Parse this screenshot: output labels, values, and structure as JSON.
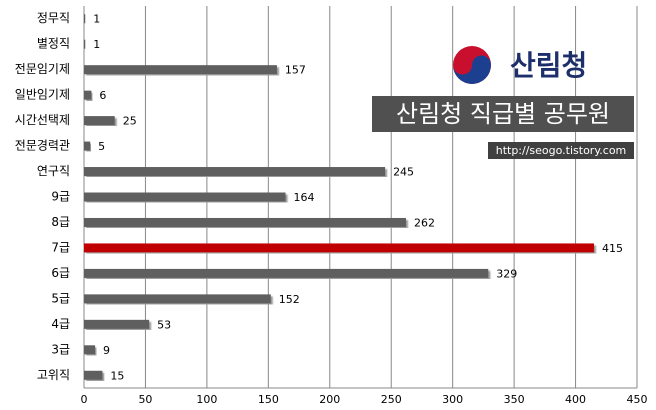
{
  "chart_data": {
    "type": "hbar",
    "logo": "산림청",
    "title": "산림청 직급별 공무원",
    "subtitle": "http://seogo.tistory.com",
    "categories": [
      "정무직",
      "별정직",
      "전문임기제",
      "일반임기제",
      "시간선택제",
      "전문경력관",
      "연구직",
      "9급",
      "8급",
      "7급",
      "6급",
      "5급",
      "4급",
      "3급",
      "고위직"
    ],
    "values": [
      1,
      1,
      157,
      6,
      25,
      5,
      245,
      164,
      262,
      415,
      329,
      152,
      53,
      9,
      15
    ],
    "colors": [
      "#5e5e5e",
      "#5e5e5e",
      "#5e5e5e",
      "#5e5e5e",
      "#5e5e5e",
      "#5e5e5e",
      "#5e5e5e",
      "#5e5e5e",
      "#5e5e5e",
      "#c00000",
      "#5e5e5e",
      "#5e5e5e",
      "#5e5e5e",
      "#5e5e5e",
      "#5e5e5e"
    ],
    "xlim": [
      0,
      450
    ],
    "xticks": [
      0,
      50,
      100,
      150,
      200,
      250,
      300,
      350,
      400,
      450
    ],
    "grid": true
  }
}
